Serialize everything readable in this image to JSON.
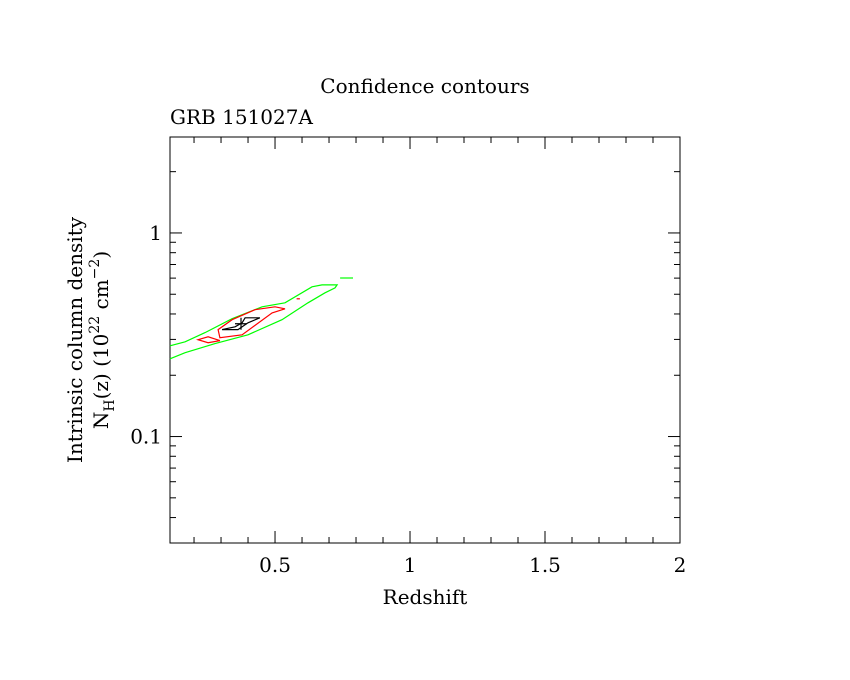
{
  "chart_data": {
    "type": "line",
    "title": "Confidence contours",
    "subtitle": "GRB 151027A",
    "xlabel": "Redshift",
    "ylabel_line1": "Intrinsic column density",
    "ylabel_line2": {
      "base": "N",
      "sub": "H",
      "mid": "(z)  (10",
      "sup": "22",
      "mid2": " cm",
      "sup2": "−2",
      "end": ")"
    },
    "xlim": [
      0.111,
      2.0
    ],
    "ylim": [
      0.03,
      2.96
    ],
    "yscale": "log",
    "x_ticks": [
      {
        "value": 0.5,
        "label": "0.5"
      },
      {
        "value": 1,
        "label": "1"
      },
      {
        "value": 1.5,
        "label": "1.5"
      },
      {
        "value": 2,
        "label": "2"
      }
    ],
    "y_ticks": [
      {
        "value": 0.1,
        "label": "0.1"
      },
      {
        "value": 1,
        "label": "1"
      }
    ],
    "colors": {
      "outer": "#00ff00",
      "middle": "#ff0000",
      "inner": "#000000"
    },
    "series": [
      {
        "name": "green-contour",
        "color": "#00ff00",
        "closed": false,
        "points": [
          [
            0.111,
            0.279
          ],
          [
            0.167,
            0.292
          ],
          [
            0.241,
            0.324
          ],
          [
            0.341,
            0.379
          ],
          [
            0.452,
            0.434
          ],
          [
            0.537,
            0.454
          ],
          [
            0.637,
            0.544
          ],
          [
            0.674,
            0.556
          ],
          [
            0.73,
            0.556
          ],
          [
            0.722,
            0.537
          ],
          [
            0.685,
            0.508
          ],
          [
            0.622,
            0.454
          ],
          [
            0.526,
            0.375
          ],
          [
            0.4,
            0.316
          ],
          [
            0.278,
            0.286
          ],
          [
            0.167,
            0.258
          ],
          [
            0.111,
            0.241
          ]
        ]
      },
      {
        "name": "green-island",
        "color": "#00ff00",
        "closed": false,
        "points": [
          [
            0.741,
            0.601
          ],
          [
            0.789,
            0.601
          ]
        ]
      },
      {
        "name": "red-contour",
        "color": "#ff0000",
        "closed": true,
        "points": [
          [
            0.289,
            0.335
          ],
          [
            0.341,
            0.375
          ],
          [
            0.426,
            0.42
          ],
          [
            0.5,
            0.434
          ],
          [
            0.537,
            0.424
          ],
          [
            0.489,
            0.405
          ],
          [
            0.378,
            0.316
          ],
          [
            0.296,
            0.306
          ]
        ]
      },
      {
        "name": "red-island",
        "color": "#ff0000",
        "closed": true,
        "points": [
          [
            0.215,
            0.299
          ],
          [
            0.252,
            0.309
          ],
          [
            0.296,
            0.296
          ],
          [
            0.252,
            0.289
          ]
        ]
      },
      {
        "name": "red-dot",
        "color": "#ff0000",
        "closed": false,
        "points": [
          [
            0.58,
            0.475
          ],
          [
            0.592,
            0.475
          ]
        ]
      },
      {
        "name": "black-contour",
        "color": "#000000",
        "closed": true,
        "points": [
          [
            0.304,
            0.335
          ],
          [
            0.352,
            0.346
          ],
          [
            0.378,
            0.362
          ],
          [
            0.389,
            0.383
          ],
          [
            0.444,
            0.383
          ],
          [
            0.4,
            0.362
          ],
          [
            0.363,
            0.335
          ]
        ]
      }
    ],
    "best_fit": {
      "x": 0.374,
      "y": 0.358
    }
  }
}
